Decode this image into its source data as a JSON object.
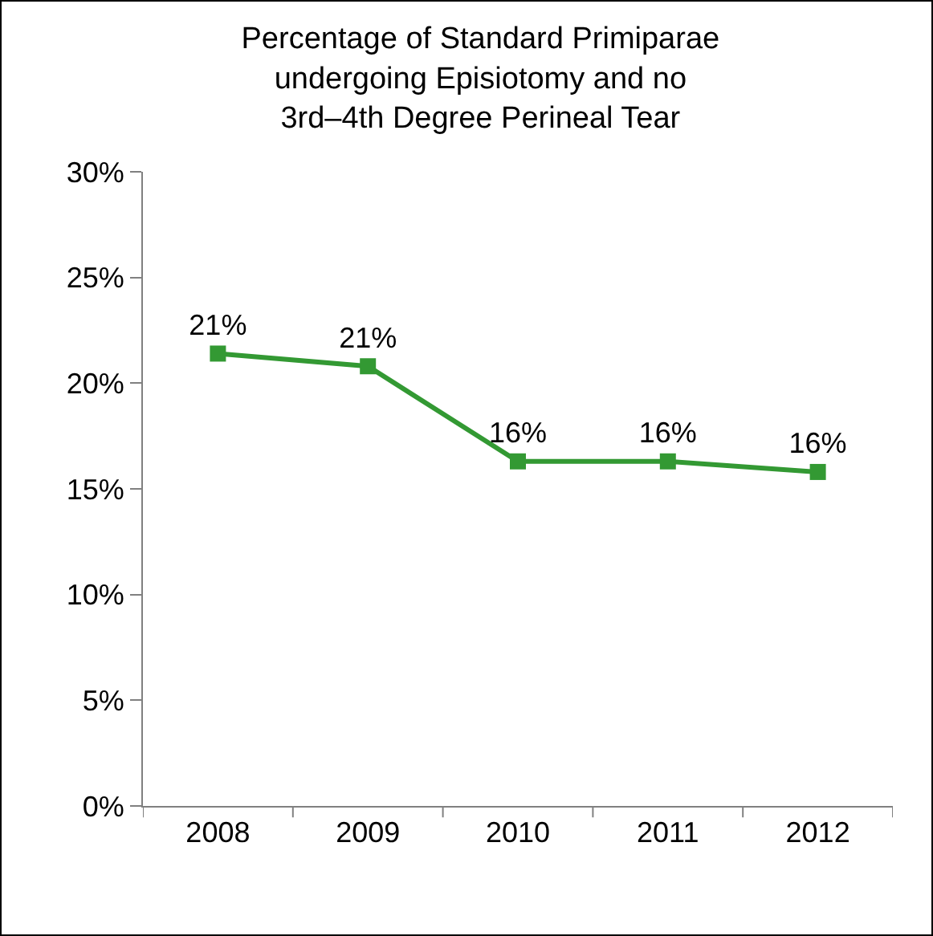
{
  "chart_data": {
    "type": "line",
    "title": "Percentage of Standard Primiparae undergoing Episiotomy and no 3rd–4th Degree Perineal Tear",
    "categories": [
      "2008",
      "2009",
      "2010",
      "2011",
      "2012"
    ],
    "series": [
      {
        "color": "#339933",
        "values": [
          21.4,
          20.8,
          16.3,
          16.3,
          15.8
        ],
        "value_labels": [
          "21%",
          "21%",
          "16%",
          "16%",
          "16%"
        ]
      }
    ],
    "ylim": [
      0,
      30
    ],
    "yticks": [
      {
        "value": 0,
        "label": "0%"
      },
      {
        "value": 5,
        "label": "5%"
      },
      {
        "value": 10,
        "label": "10%"
      },
      {
        "value": 15,
        "label": "15%"
      },
      {
        "value": 20,
        "label": "20%"
      },
      {
        "value": 25,
        "label": "25%"
      },
      {
        "value": 30,
        "label": "30%"
      }
    ],
    "grid": false,
    "marker": "square",
    "line_style": "solid"
  }
}
